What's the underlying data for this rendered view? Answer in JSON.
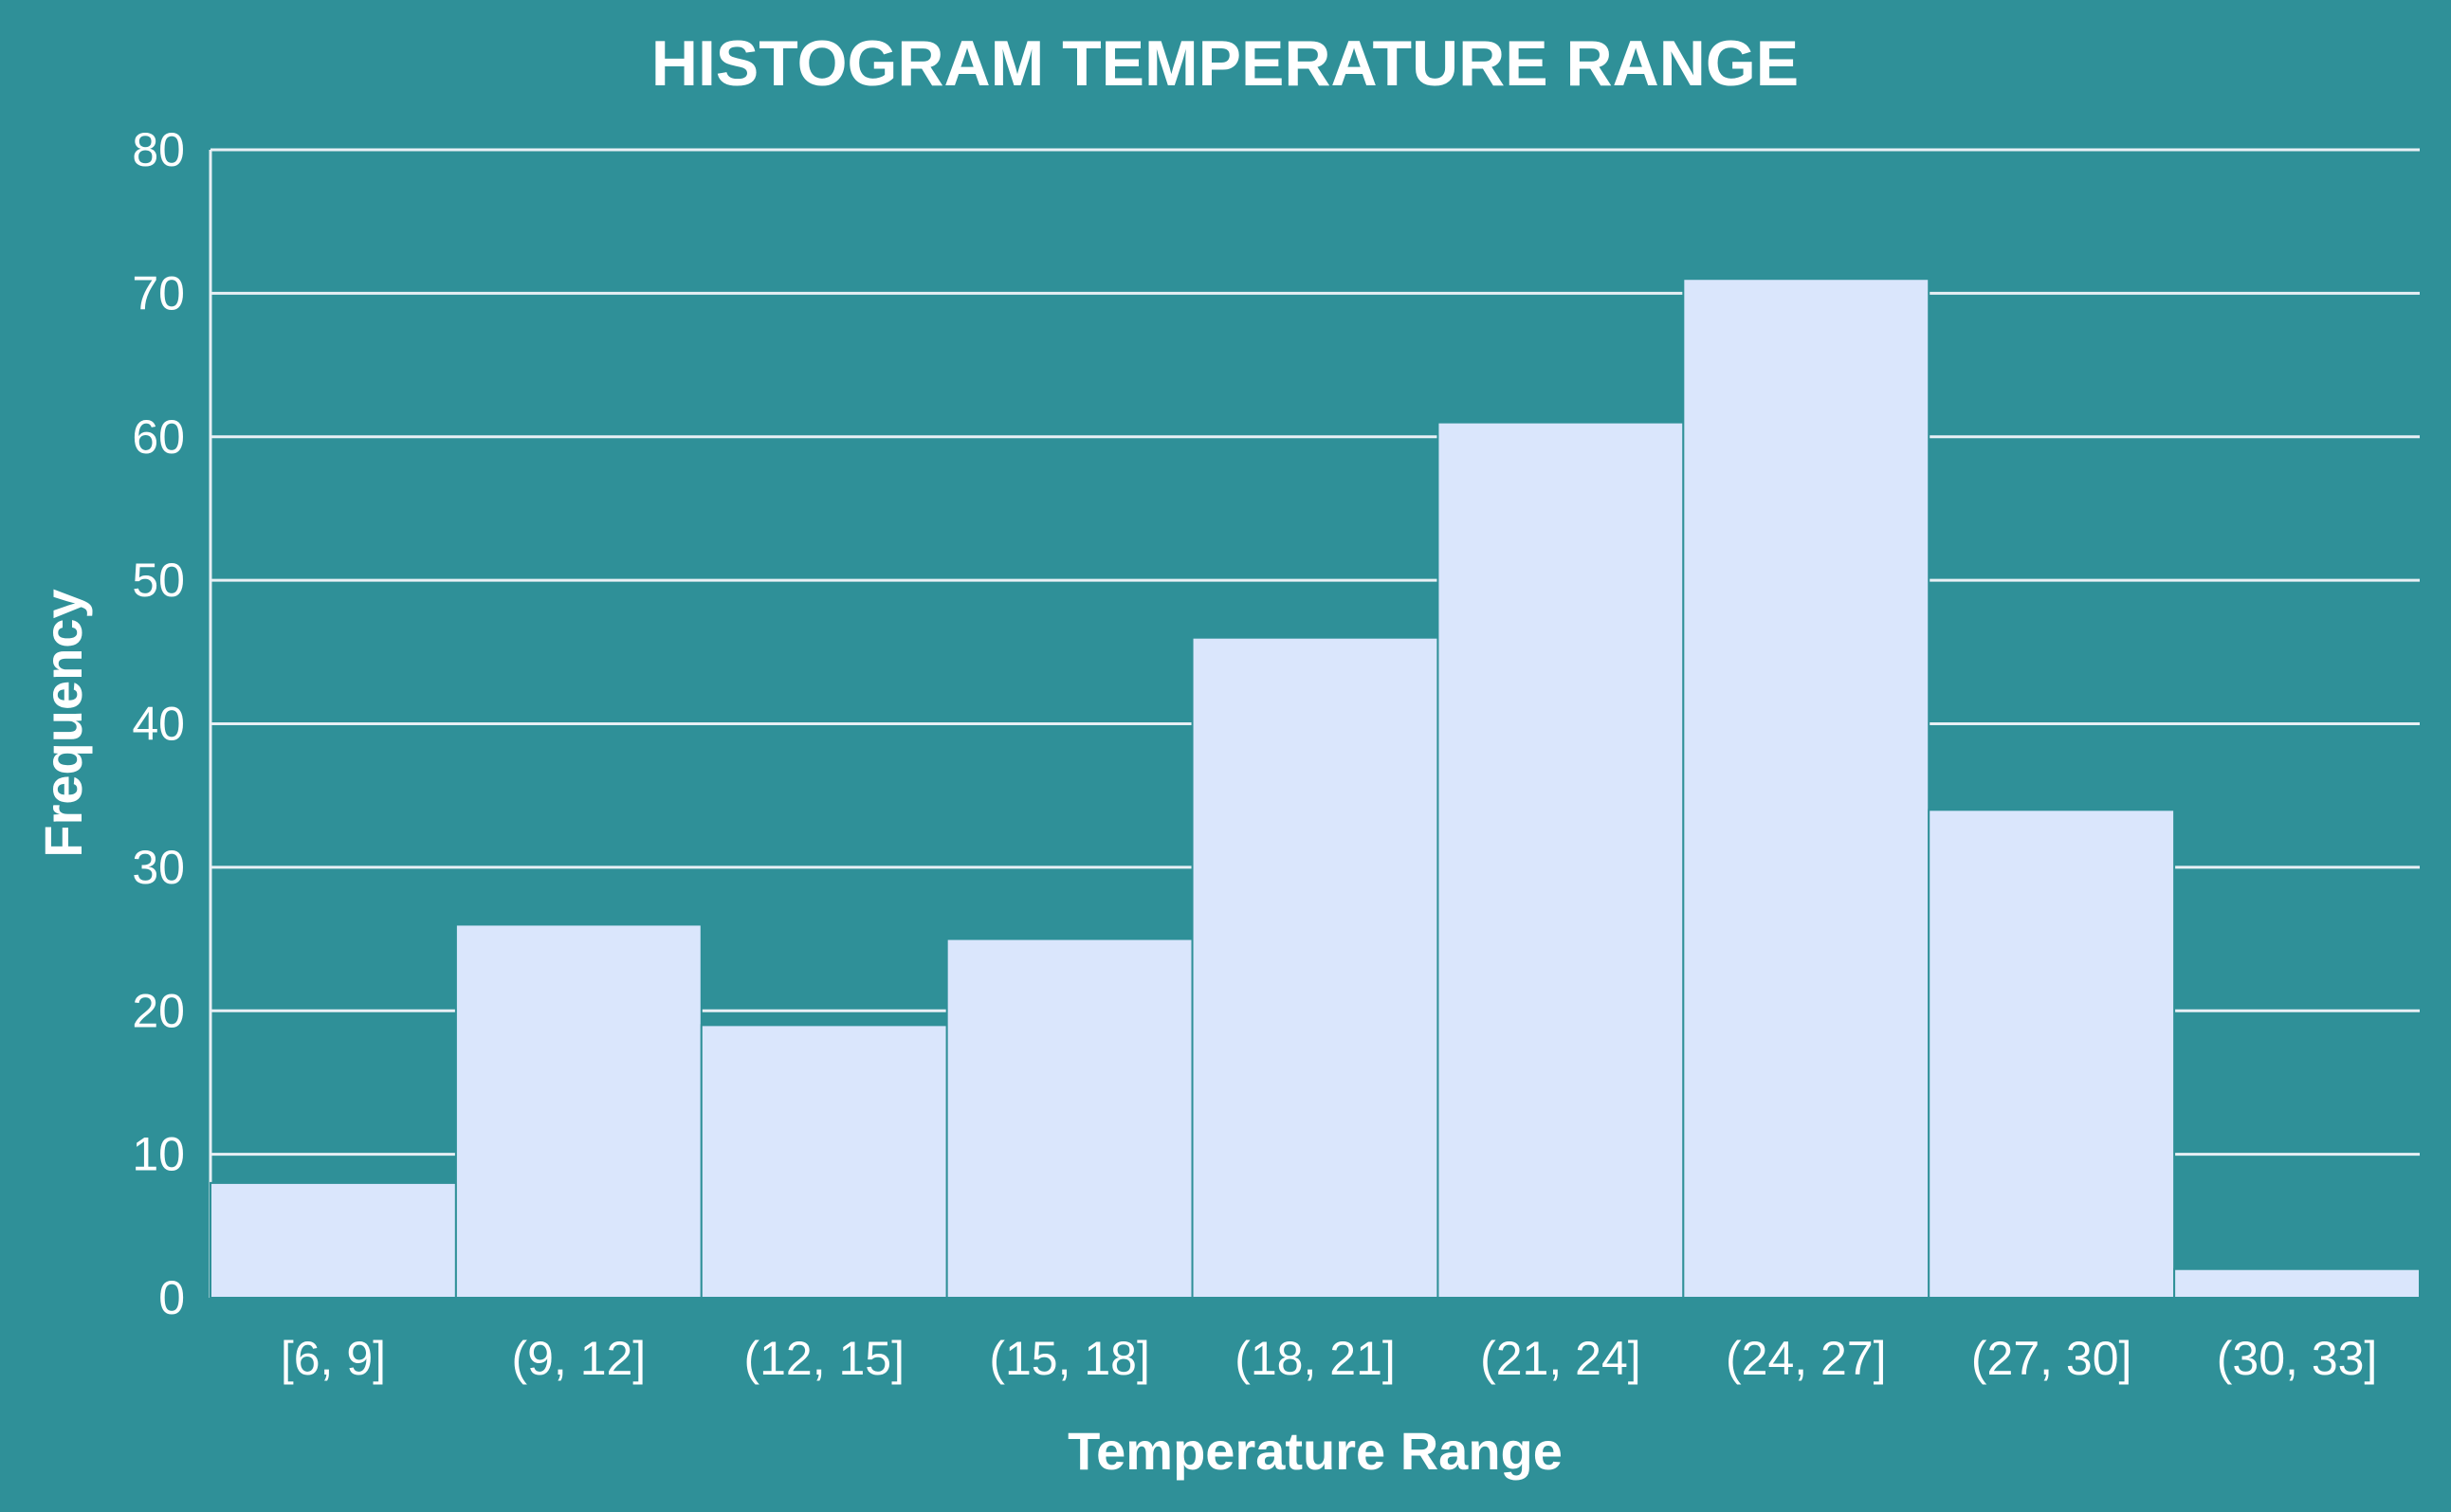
{
  "colors": {
    "background": "#2f9098",
    "bar_fill": "#dae6fc",
    "text": "#ffffff",
    "grid": "#e8f0f5"
  },
  "chart_data": {
    "type": "bar",
    "title": "HISTOGRAM TEMPERATURE RANGE",
    "xlabel": "Temperature Range",
    "ylabel": "Frequency",
    "categories": [
      "[6, 9]",
      "(9, 12]",
      "(12, 15]",
      "(15, 18]",
      "(18, 21]",
      "(21, 24]",
      "(24, 27]",
      "(27, 30]",
      "(30, 33]"
    ],
    "values": [
      8,
      26,
      19,
      25,
      46,
      61,
      71,
      34,
      2
    ],
    "ylim": [
      0,
      80
    ],
    "yticks": [
      "0",
      "10",
      "20",
      "30",
      "40",
      "50",
      "60",
      "70",
      "80"
    ],
    "grid": true,
    "legend": "none"
  }
}
